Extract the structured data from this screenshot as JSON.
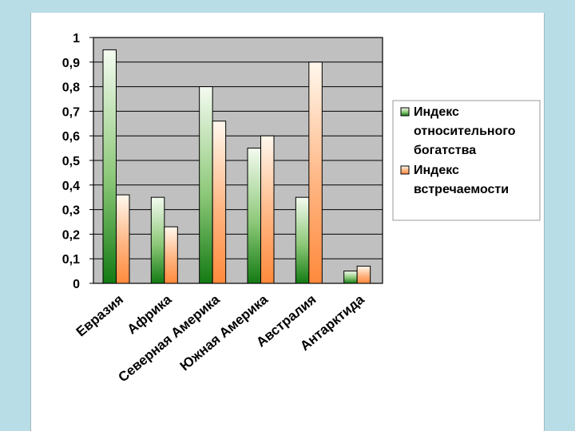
{
  "chart_data": {
    "type": "bar",
    "categories": [
      "Евразия",
      "Африка",
      "Северная Америка",
      "Южная Америка",
      "Австралия",
      "Антарктида"
    ],
    "series": [
      {
        "name": "Индекс относительного богатства",
        "values": [
          0.95,
          0.35,
          0.8,
          0.55,
          0.35,
          0.05
        ],
        "color": "#2e8b2e"
      },
      {
        "name": "Индекс встречаемости",
        "values": [
          0.36,
          0.23,
          0.66,
          0.6,
          0.9,
          0.07
        ],
        "color": "#ff9955"
      }
    ],
    "ylim": [
      0,
      1
    ],
    "yticks": [
      0,
      0.1,
      0.2,
      0.3,
      0.4,
      0.5,
      0.6,
      0.7,
      0.8,
      0.9,
      1
    ],
    "ytick_labels": [
      "0",
      "0,1",
      "0,2",
      "0,3",
      "0,4",
      "0,5",
      "0,6",
      "0,7",
      "0,8",
      "0,9",
      "1"
    ],
    "grid": true,
    "legend_position": "right",
    "legend_lines": [
      [
        "Индекс",
        "относительного",
        "богатства"
      ],
      [
        "Индекс",
        "встречаемости"
      ]
    ],
    "plot_background": "#c0c0c0"
  }
}
